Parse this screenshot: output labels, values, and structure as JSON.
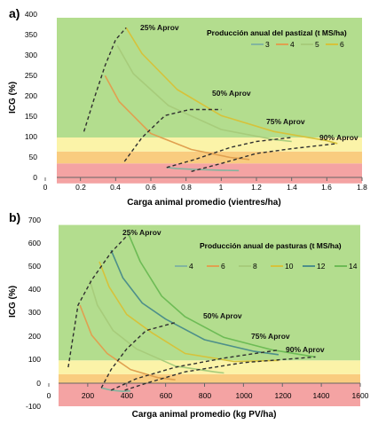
{
  "panels": [
    {
      "id": "a",
      "panel_label": "a)",
      "ylabel": "ICG (%)",
      "xlabel": "Carga animal promedio (vientres/ha)",
      "legend_title": "Producción anual del pastizal (t MS/ha)",
      "xticks": [
        "0",
        "0.2",
        "0.4",
        "0.6",
        "0.8",
        "1",
        "1.2",
        "1.4",
        "1.6",
        "1.8"
      ],
      "yticks": [
        "0",
        "50",
        "100",
        "150",
        "200",
        "250",
        "300",
        "350",
        "400"
      ],
      "annotations": [
        "25% Aprov",
        "50% Aprov",
        "75% Aprov",
        "90% Aprov"
      ]
    },
    {
      "id": "b",
      "panel_label": "b)",
      "ylabel": "ICG (%)",
      "xlabel": "Carga animal promedio (kg PV/ha)",
      "legend_title": "Producción anual de pasturas (t MS/ha)",
      "xticks": [
        "0",
        "200",
        "400",
        "600",
        "800",
        "1000",
        "1200",
        "1400",
        "1600"
      ],
      "yticks": [
        "-100",
        "0",
        "100",
        "200",
        "300",
        "400",
        "500",
        "600",
        "700"
      ],
      "annotations": [
        "25% Aprov",
        "50% Aprov",
        "75% Aprov",
        "90% Aprov"
      ]
    }
  ],
  "chart_data": [
    {
      "type": "line",
      "panel": "a",
      "xlabel": "Carga animal promedio (vientres/ha)",
      "ylabel": "ICG (%)",
      "xlim": [
        0,
        1.8
      ],
      "ylim": [
        0,
        400
      ],
      "grid": false,
      "legend_title": "Producción anual del pastizal (t MS/ha)",
      "legend_position": "top-right",
      "background_bands": [
        {
          "y": [
            -15,
            35
          ],
          "color": "#f4a3a3"
        },
        {
          "y": [
            35,
            65
          ],
          "color": "#f9cc7f"
        },
        {
          "y": [
            65,
            100
          ],
          "color": "#fbf3a8"
        },
        {
          "y": [
            100,
            400
          ],
          "color": "#b3dd8e"
        }
      ],
      "series": [
        {
          "name": "3",
          "color": "#82b59f",
          "x": [
            0.69,
            0.75,
            0.85,
            1.0,
            1.1
          ],
          "y": [
            25,
            22,
            20,
            18,
            17
          ]
        },
        {
          "name": "4",
          "color": "#e0a050",
          "x": [
            0.34,
            0.42,
            0.6,
            0.83,
            1.05,
            1.16
          ],
          "y": [
            255,
            190,
            110,
            70,
            50,
            45
          ]
        },
        {
          "name": "5",
          "color": "#a7cc7b",
          "x": [
            0.41,
            0.5,
            0.7,
            1.0,
            1.3,
            1.4
          ],
          "y": [
            330,
            260,
            180,
            120,
            95,
            90
          ]
        },
        {
          "name": "6",
          "color": "#d6c23a",
          "x": [
            0.46,
            0.55,
            0.75,
            1.0,
            1.3,
            1.6,
            1.66
          ],
          "y": [
            375,
            310,
            220,
            155,
            115,
            92,
            85
          ]
        }
      ],
      "dashed_series": [
        {
          "label": "25% Aprov",
          "x": [
            0.22,
            0.28,
            0.34,
            0.4,
            0.46
          ],
          "y": [
            115,
            200,
            280,
            345,
            375
          ]
        },
        {
          "label": "50% Aprov",
          "x": [
            0.45,
            0.55,
            0.68,
            0.82,
            1.0
          ],
          "y": [
            40,
            100,
            155,
            170,
            170
          ]
        },
        {
          "label": "75% Aprov",
          "x": [
            0.69,
            0.85,
            1.05,
            1.2,
            1.4
          ],
          "y": [
            25,
            45,
            75,
            90,
            100
          ]
        },
        {
          "label": "90% Aprov",
          "x": [
            0.83,
            1.0,
            1.2,
            1.4,
            1.66
          ],
          "y": [
            15,
            35,
            60,
            72,
            85
          ]
        }
      ],
      "annotations": [
        {
          "text": "25% Aprov",
          "x": 0.52,
          "y": 385
        },
        {
          "text": "50% Aprov",
          "x": 0.93,
          "y": 207
        },
        {
          "text": "75% Aprov",
          "x": 1.26,
          "y": 130
        },
        {
          "text": "90% Aprov",
          "x": 1.57,
          "y": 100
        }
      ]
    },
    {
      "type": "line",
      "panel": "b",
      "xlabel": "Carga animal promedio (kg PV/ha)",
      "ylabel": "ICG (%)",
      "xlim": [
        0,
        1600
      ],
      "ylim": [
        -100,
        700
      ],
      "grid": false,
      "legend_title": "Producción anual de pasturas (t MS/ha)",
      "legend_position": "top-right",
      "background_bands": [
        {
          "y": [
            -100,
            0
          ],
          "color": "#f4a3a3"
        },
        {
          "y": [
            0,
            40
          ],
          "color": "#f9cc7f"
        },
        {
          "y": [
            40,
            100
          ],
          "color": "#fbf3a8"
        },
        {
          "y": [
            100,
            690
          ],
          "color": "#b3dd8e"
        }
      ],
      "series": [
        {
          "name": "4",
          "color": "#82b59f",
          "x": [
            270,
            320,
            380,
            420
          ],
          "y": [
            -20,
            -30,
            -35,
            -33
          ]
        },
        {
          "name": "6",
          "color": "#e0a050",
          "x": [
            160,
            220,
            300,
            420,
            560,
            650
          ],
          "y": [
            340,
            210,
            130,
            60,
            25,
            15
          ]
        },
        {
          "name": "8",
          "color": "#a7cc7b",
          "x": [
            210,
            250,
            330,
            450,
            650,
            850,
            900
          ],
          "y": [
            450,
            340,
            230,
            150,
            75,
            50,
            45
          ]
        },
        {
          "name": "10",
          "color": "#d6c23a",
          "x": [
            260,
            310,
            400,
            530,
            700,
            950,
            1180
          ],
          "y": [
            530,
            420,
            300,
            220,
            130,
            95,
            100
          ]
        },
        {
          "name": "12",
          "color": "#4d8f8a",
          "x": [
            320,
            380,
            480,
            600,
            800,
            1050,
            1180
          ],
          "y": [
            580,
            460,
            350,
            280,
            190,
            140,
            125
          ]
        },
        {
          "name": "14",
          "color": "#6dbb55",
          "x": [
            410,
            470,
            580,
            700,
            900,
            1150,
            1370
          ],
          "y": [
            650,
            530,
            380,
            290,
            200,
            145,
            115
          ]
        }
      ],
      "dashed_series": [
        {
          "label": "25% Aprov",
          "x": [
            100,
            150,
            220,
            320,
            410
          ],
          "y": [
            70,
            340,
            450,
            570,
            650
          ]
        },
        {
          "label": "50% Aprov",
          "x": [
            270,
            320,
            400,
            500,
            650
          ],
          "y": [
            -20,
            60,
            150,
            230,
            265
          ]
        },
        {
          "label": "75% Aprov",
          "x": [
            320,
            450,
            650,
            900,
            1180
          ],
          "y": [
            -30,
            20,
            70,
            110,
            145
          ]
        },
        {
          "label": "90% Aprov",
          "x": [
            390,
            500,
            700,
            1000,
            1370
          ],
          "y": [
            -30,
            0,
            50,
            90,
            115
          ]
        }
      ],
      "annotations": [
        {
          "text": "25% Aprov",
          "x": 490,
          "y": 665
        },
        {
          "text": "50% Aprov",
          "x": 730,
          "y": 315
        },
        {
          "text": "75% Aprov",
          "x": 1040,
          "y": 195
        },
        {
          "text": "90% Aprov",
          "x": 1320,
          "y": 140
        }
      ]
    }
  ]
}
